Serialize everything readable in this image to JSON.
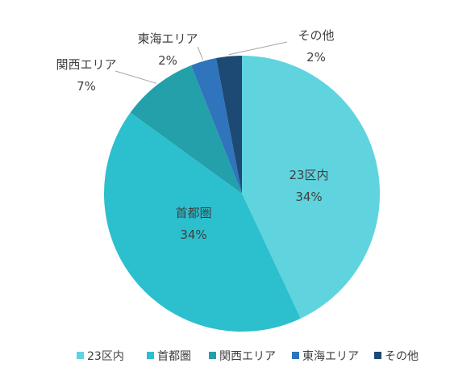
{
  "chart_data": {
    "type": "pie",
    "categories": [
      "23区内",
      "首都圏",
      "関西エリア",
      "東海エリア",
      "その他"
    ],
    "values": [
      43,
      42,
      9,
      3,
      3
    ],
    "data_labels": [
      {
        "name": "23区内",
        "value": "34%"
      },
      {
        "name": "首都圏",
        "value": "34%"
      },
      {
        "name": "関西エリア",
        "value": "7%"
      },
      {
        "name": "東海エリア",
        "value": "2%"
      },
      {
        "name": "その他",
        "value": "2%"
      }
    ],
    "colors": [
      "#5fd4de",
      "#2cbfce",
      "#23a0aa",
      "#2f74bd",
      "#1d4a74"
    ],
    "legend": "bottom",
    "start_angle_deg": 0,
    "direction": "clockwise"
  }
}
